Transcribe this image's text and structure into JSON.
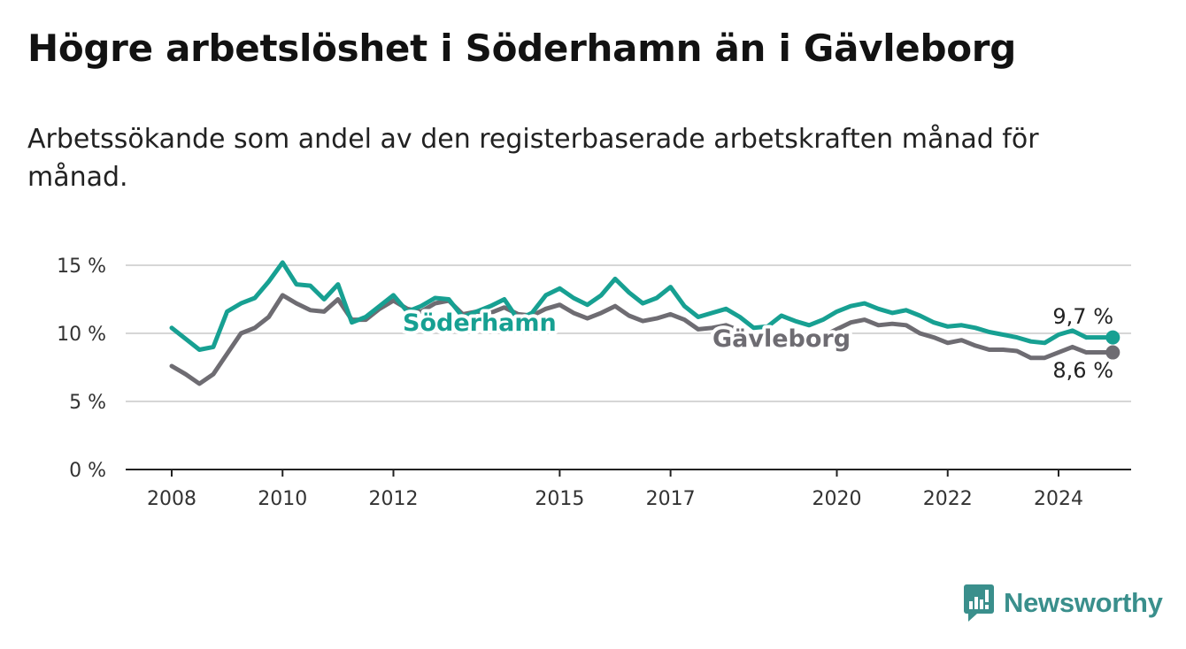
{
  "header": {
    "title": "Högre arbetslöshet i Söderhamn än i Gävleborg",
    "subtitle": "Arbetssökande som andel av den registerbaserade arbetskraften månad för månad."
  },
  "brand": {
    "name": "Newsworthy",
    "icon": "newsworthy-logo-icon",
    "color": "#3a8f8c"
  },
  "chart_data": {
    "type": "line",
    "ylim": [
      0,
      15
    ],
    "xlim": [
      2008.0,
      2025.3
    ],
    "y_ticks": [
      0,
      5,
      10,
      15
    ],
    "y_tick_labels": [
      "0 %",
      "5 %",
      "10 %",
      "15 %"
    ],
    "x_ticks": [
      2008,
      2010,
      2012,
      2015,
      2017,
      2020,
      2022,
      2024
    ],
    "x_tick_labels": [
      "2008",
      "2010",
      "2012",
      "2015",
      "2017",
      "2020",
      "2022",
      "2024"
    ],
    "grid": true,
    "x": [
      2008.0,
      2008.25,
      2008.5,
      2008.75,
      2009.0,
      2009.25,
      2009.5,
      2009.75,
      2010.0,
      2010.25,
      2010.5,
      2010.75,
      2011.0,
      2011.25,
      2011.5,
      2011.75,
      2012.0,
      2012.25,
      2012.5,
      2012.75,
      2013.0,
      2013.25,
      2013.5,
      2013.75,
      2014.0,
      2014.25,
      2014.5,
      2014.75,
      2015.0,
      2015.25,
      2015.5,
      2015.75,
      2016.0,
      2016.25,
      2016.5,
      2016.75,
      2017.0,
      2017.25,
      2017.5,
      2017.75,
      2018.0,
      2018.25,
      2018.5,
      2018.75,
      2019.0,
      2019.25,
      2019.5,
      2019.75,
      2020.0,
      2020.25,
      2020.5,
      2020.75,
      2021.0,
      2021.25,
      2021.5,
      2021.75,
      2022.0,
      2022.25,
      2022.5,
      2022.75,
      2023.0,
      2023.25,
      2023.5,
      2023.75,
      2024.0,
      2024.25,
      2024.5
    ],
    "series": [
      {
        "name": "Söderhamn",
        "color": "#17a092",
        "end_label": "9,7 %",
        "values": [
          10.4,
          9.6,
          8.8,
          9.0,
          11.6,
          12.2,
          12.6,
          13.8,
          15.2,
          13.6,
          13.5,
          12.5,
          13.6,
          10.8,
          11.2,
          12.0,
          12.8,
          11.6,
          12.0,
          12.6,
          12.5,
          11.2,
          11.6,
          12.0,
          12.5,
          11.0,
          11.5,
          12.8,
          13.3,
          12.6,
          12.1,
          12.8,
          14.0,
          13.0,
          12.2,
          12.6,
          13.4,
          12.0,
          11.2,
          11.5,
          11.8,
          11.2,
          10.4,
          10.5,
          11.3,
          10.9,
          10.6,
          11.0,
          11.6,
          12.0,
          12.2,
          11.8,
          11.5,
          11.7,
          11.3,
          10.8,
          10.5,
          10.6,
          10.4,
          10.1,
          9.9,
          9.7,
          9.4,
          9.3,
          9.9,
          10.2,
          9.7
        ]
      },
      {
        "name": "Gävleborg",
        "color": "#6e6c72",
        "end_label": "8,6 %",
        "values": [
          7.6,
          7.0,
          6.3,
          7.0,
          8.5,
          10.0,
          10.4,
          11.2,
          12.8,
          12.2,
          11.7,
          11.6,
          12.5,
          11.0,
          11.0,
          11.8,
          12.4,
          11.8,
          11.6,
          12.2,
          12.4,
          11.4,
          11.6,
          11.5,
          11.9,
          11.4,
          11.3,
          11.8,
          12.1,
          11.5,
          11.1,
          11.5,
          12.0,
          11.3,
          10.9,
          11.1,
          11.4,
          11.0,
          10.3,
          10.4,
          10.6,
          10.2,
          9.7,
          9.8,
          10.0,
          9.7,
          9.6,
          9.8,
          10.3,
          10.8,
          11.0,
          10.6,
          10.7,
          10.6,
          10.0,
          9.7,
          9.3,
          9.5,
          9.1,
          8.8,
          8.8,
          8.7,
          8.2,
          8.2,
          8.6,
          9.0,
          8.6
        ]
      }
    ]
  }
}
